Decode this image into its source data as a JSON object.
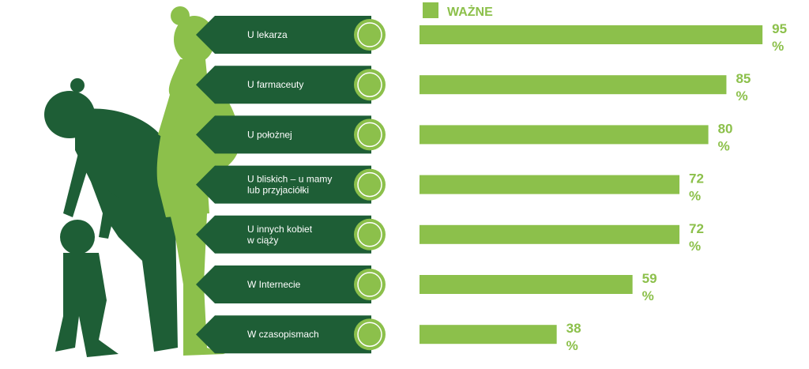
{
  "chart_data": {
    "type": "bar",
    "orientation": "horizontal",
    "categories": [
      "U lekarza",
      "U farmaceuty",
      "U położnej",
      "U bliskich – u mamy\nlub przyjaciółki",
      "U innych kobiet\nw ciąży",
      "W Internecie",
      "W czasopismach"
    ],
    "series": [
      {
        "name": "WAŻNE",
        "color": "#8cc04b",
        "values": [
          95,
          85,
          80,
          72,
          72,
          59,
          38
        ],
        "value_labels": [
          "95\n%",
          "85\n%",
          "80\n%",
          "72\n%",
          "72\n%",
          "59\n%",
          "38\n%"
        ]
      }
    ],
    "xlim": [
      0,
      100
    ]
  }
}
